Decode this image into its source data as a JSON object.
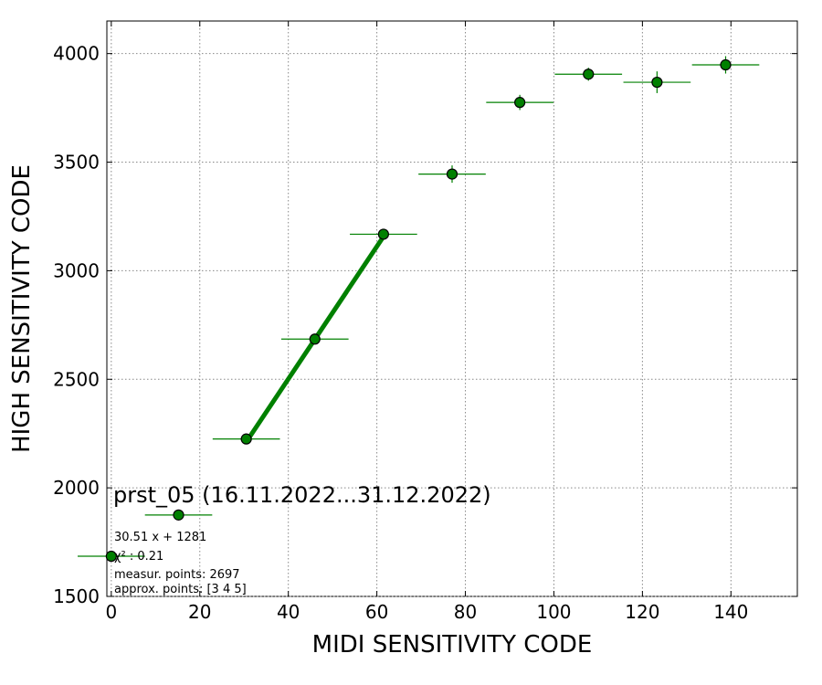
{
  "chart_data": {
    "type": "scatter",
    "xlabel": "MIDI SENSITIVITY CODE",
    "ylabel": "HIGH SENSITIVITY CODE",
    "xlim": [
      -1,
      155
    ],
    "ylim": [
      1500,
      4150
    ],
    "x_ticks": [
      0,
      20,
      40,
      60,
      80,
      100,
      120,
      140
    ],
    "y_ticks": [
      1500,
      2000,
      2500,
      3000,
      3500,
      4000
    ],
    "grid": true,
    "points": [
      {
        "x": 0,
        "y": 1685,
        "xerr": 7.6,
        "yerr": 0
      },
      {
        "x": 15.2,
        "y": 1875,
        "xerr": 7.6,
        "yerr": 0
      },
      {
        "x": 30.5,
        "y": 2225,
        "xerr": 7.6,
        "yerr": 10
      },
      {
        "x": 46.0,
        "y": 2685,
        "xerr": 7.6,
        "yerr": 10
      },
      {
        "x": 61.5,
        "y": 3168,
        "xerr": 7.6,
        "yerr": 25
      },
      {
        "x": 77.0,
        "y": 3445,
        "xerr": 7.6,
        "yerr": 40
      },
      {
        "x": 92.3,
        "y": 3775,
        "xerr": 7.6,
        "yerr": 35
      },
      {
        "x": 107.8,
        "y": 3905,
        "xerr": 7.6,
        "yerr": 30
      },
      {
        "x": 123.3,
        "y": 3868,
        "xerr": 7.6,
        "yerr": 50
      },
      {
        "x": 138.8,
        "y": 3948,
        "xerr": 7.6,
        "yerr": 40
      }
    ],
    "fit": {
      "slope": 30.51,
      "intercept": 1281,
      "x_range": [
        30.5,
        61.5
      ]
    },
    "colors": {
      "marker": "#008000",
      "marker_edge": "#000000",
      "errorbar": "#008000",
      "fit_line": "#008000",
      "grid": "#888888"
    },
    "annotations": {
      "title": "prst_05 (16.11.2022...31.12.2022)",
      "fit_eq": "30.51 x + 1281",
      "chi2": "χ² : 0.21",
      "measur": "measur. points: 2697",
      "approx": "approx. points: [3 4 5]"
    }
  }
}
